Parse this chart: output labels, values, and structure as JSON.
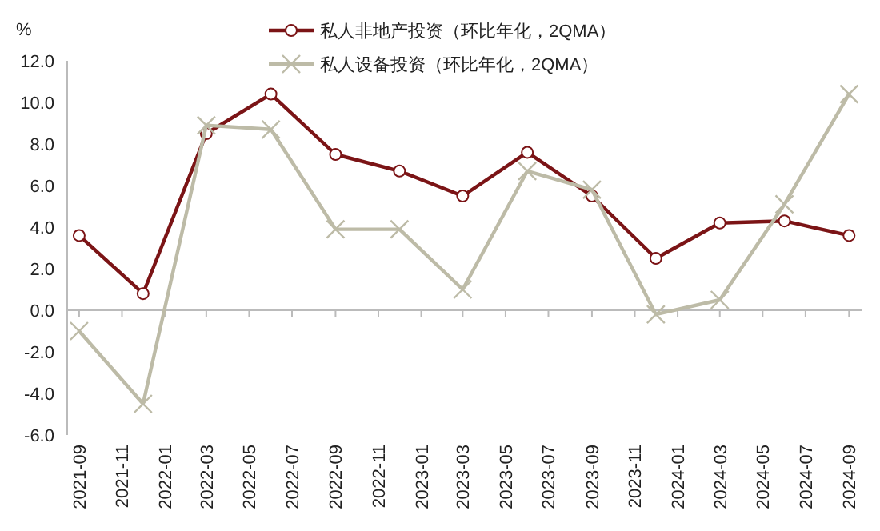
{
  "chart_data": {
    "type": "line",
    "ylabel": "%",
    "x": [
      "2021-09",
      "2021-12",
      "2022-03",
      "2022-06",
      "2022-09",
      "2022-12",
      "2023-03",
      "2023-06",
      "2023-09",
      "2023-12",
      "2024-03",
      "2024-06",
      "2024-09"
    ],
    "series": [
      {
        "name": "私人非地产投资（环比年化，2QMA）",
        "color": "#7b1416",
        "marker": "circle",
        "values": [
          3.6,
          0.8,
          8.5,
          10.4,
          7.5,
          6.7,
          5.5,
          7.6,
          5.5,
          2.5,
          4.2,
          4.3,
          3.6
        ]
      },
      {
        "name": "私人设备投资（环比年化，2QMA）",
        "color": "#bdbba7",
        "marker": "cross",
        "values": [
          -1.0,
          -4.5,
          8.9,
          8.7,
          3.9,
          3.9,
          1.0,
          6.7,
          5.8,
          -0.2,
          0.5,
          5.1,
          10.4
        ]
      }
    ],
    "xlim": [
      "2021-08-15",
      "2024-09-20"
    ],
    "xticks": [
      "2021-09",
      "2021-11",
      "2022-01",
      "2022-03",
      "2022-05",
      "2022-07",
      "2022-09",
      "2022-11",
      "2023-01",
      "2023-03",
      "2023-05",
      "2023-07",
      "2023-09",
      "2023-11",
      "2024-01",
      "2024-03",
      "2024-05",
      "2024-07",
      "2024-09"
    ],
    "ylim": [
      -6,
      12
    ],
    "yticks": [
      {
        "value": -6,
        "label": "-6.0"
      },
      {
        "value": -4,
        "label": "-4.0"
      },
      {
        "value": -2,
        "label": "-2.0"
      },
      {
        "value": 0,
        "label": "0.0"
      },
      {
        "value": 2,
        "label": "2.0"
      },
      {
        "value": 4,
        "label": "4.0"
      },
      {
        "value": 6,
        "label": "6.0"
      },
      {
        "value": 8,
        "label": "8.0"
      },
      {
        "value": 10,
        "label": "10.0"
      },
      {
        "value": 12,
        "label": "12.0"
      }
    ],
    "legend": "top",
    "line_style": "solid"
  }
}
